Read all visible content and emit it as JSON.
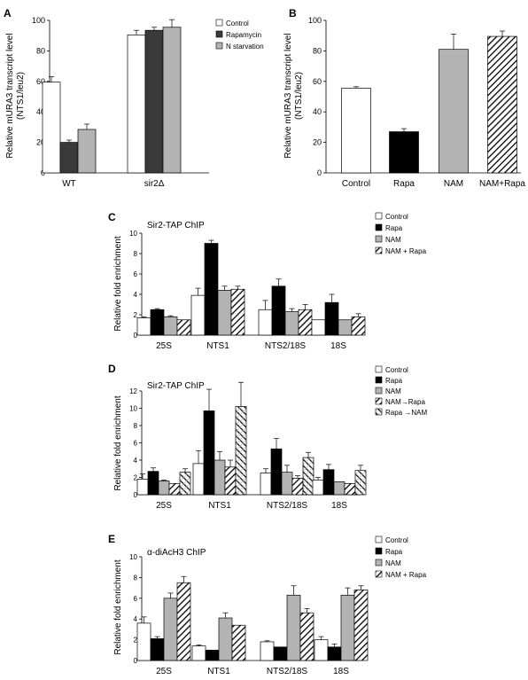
{
  "chart_data": [
    {
      "panel": "A",
      "type": "bar",
      "ylabel": [
        "Relative mURA3 transcript level",
        "(NTS1/leu2)"
      ],
      "ylim": [
        0,
        100
      ],
      "yticks": [
        0,
        20,
        40,
        60,
        80,
        100
      ],
      "categories": [
        "WT",
        "sir2Δ"
      ],
      "series": [
        {
          "name": "Control",
          "pattern": "white",
          "values": [
            59.5,
            90.5
          ],
          "errors": [
            3.5,
            3
          ]
        },
        {
          "name": "Rapamycin",
          "pattern": "dark",
          "values": [
            20,
            93.5
          ],
          "errors": [
            1.5,
            2
          ]
        },
        {
          "name": "N starvation",
          "pattern": "gray",
          "values": [
            28.5,
            95.5
          ],
          "errors": [
            3.5,
            5
          ]
        }
      ],
      "legend_position": "top-right"
    },
    {
      "panel": "B",
      "type": "bar",
      "ylabel": [
        "Relative mURA3 transcript level",
        "(NTS1/leu2)"
      ],
      "ylim": [
        0,
        100
      ],
      "yticks": [
        0,
        20,
        40,
        60,
        80,
        100
      ],
      "categories": [
        "Control",
        "Rapa",
        "NAM",
        "NAM+Rapa"
      ],
      "values": [
        55.5,
        27,
        81,
        89.5
      ],
      "errors": [
        1,
        2,
        10,
        3.5
      ],
      "patterns": [
        "white",
        "black",
        "gray",
        "hatch"
      ]
    },
    {
      "panel": "C",
      "type": "bar",
      "title": "Sir2-TAP ChIP",
      "ylabel": [
        "Relative fold enrichment"
      ],
      "ylim": [
        0,
        10
      ],
      "yticks": [
        0,
        2,
        4,
        6,
        8,
        10
      ],
      "categories": [
        "25S",
        "NTS1",
        "NTS2/18S",
        "18S"
      ],
      "series": [
        {
          "name": "Control",
          "pattern": "white",
          "values": [
            1.7,
            3.9,
            2.5,
            1.5
          ],
          "errors": [
            0.1,
            0.7,
            0.9,
            0
          ]
        },
        {
          "name": "Rapa",
          "pattern": "black",
          "values": [
            2.5,
            9,
            4.8,
            3.2
          ],
          "errors": [
            0.1,
            0.3,
            0.7,
            0.8
          ]
        },
        {
          "name": "NAM",
          "pattern": "gray",
          "values": [
            1.8,
            4.4,
            2.3,
            1.5
          ],
          "errors": [
            0.1,
            0.4,
            0.3,
            0
          ]
        },
        {
          "name": "NAM + Rapa",
          "pattern": "hatch",
          "values": [
            1.5,
            4.5,
            2.5,
            1.8
          ],
          "errors": [
            0,
            0.3,
            0.5,
            0.3
          ]
        }
      ],
      "legend_position": "top-right"
    },
    {
      "panel": "D",
      "type": "bar",
      "title": "Sir2-TAP ChIP",
      "ylabel": [
        "Relative fold enrichment"
      ],
      "ylim": [
        0,
        12
      ],
      "yticks": [
        0,
        2,
        4,
        6,
        8,
        10,
        12
      ],
      "categories": [
        "25S",
        "NTS1",
        "NTS2/18S",
        "18S"
      ],
      "series": [
        {
          "name": "Control",
          "pattern": "white",
          "values": [
            1.8,
            3.6,
            2.5,
            1.7
          ],
          "errors": [
            0.6,
            1.5,
            0.5,
            0.3
          ]
        },
        {
          "name": "Rapa",
          "pattern": "black",
          "values": [
            2.7,
            9.7,
            5.3,
            2.9
          ],
          "errors": [
            0.4,
            2.5,
            1.2,
            0.6
          ]
        },
        {
          "name": "NAM",
          "pattern": "gray",
          "values": [
            1.6,
            4,
            2.6,
            1.5
          ],
          "errors": [
            0.1,
            1,
            0.8,
            0
          ]
        },
        {
          "name": "NAM→Rapa",
          "pattern": "hatch",
          "values": [
            1.3,
            3.2,
            1.9,
            1.3
          ],
          "errors": [
            0,
            0.8,
            0.3,
            0
          ]
        },
        {
          "name": "Rapa →NAM",
          "pattern": "crosshatch",
          "values": [
            2.6,
            10.2,
            4.3,
            2.8
          ],
          "errors": [
            0.4,
            2.8,
            0.6,
            0.6
          ]
        }
      ],
      "legend_position": "top-right"
    },
    {
      "panel": "E",
      "type": "bar",
      "title": "α-diAcH3 ChIP",
      "ylabel": [
        "Relative fold enrichment"
      ],
      "ylim": [
        0,
        10
      ],
      "yticks": [
        0,
        2,
        4,
        6,
        8,
        10
      ],
      "categories": [
        "25S",
        "NTS1",
        "NTS2/18S",
        "18S"
      ],
      "series": [
        {
          "name": "Control",
          "pattern": "white",
          "values": [
            3.6,
            1.4,
            1.8,
            2
          ],
          "errors": [
            0.6,
            0.1,
            0.1,
            0.3
          ]
        },
        {
          "name": "Rapa",
          "pattern": "black",
          "values": [
            2.1,
            1,
            1.3,
            1.3
          ],
          "errors": [
            0.2,
            0,
            0,
            0.3
          ]
        },
        {
          "name": "NAM",
          "pattern": "gray",
          "values": [
            6,
            4.1,
            6.3,
            6.3
          ],
          "errors": [
            0.5,
            0.5,
            0.9,
            0.7
          ]
        },
        {
          "name": "NAM + Rapa",
          "pattern": "hatch",
          "values": [
            7.5,
            3.4,
            4.6,
            6.8
          ],
          "errors": [
            0.6,
            0,
            0.4,
            0.4
          ]
        }
      ],
      "legend_position": "top-right"
    }
  ]
}
